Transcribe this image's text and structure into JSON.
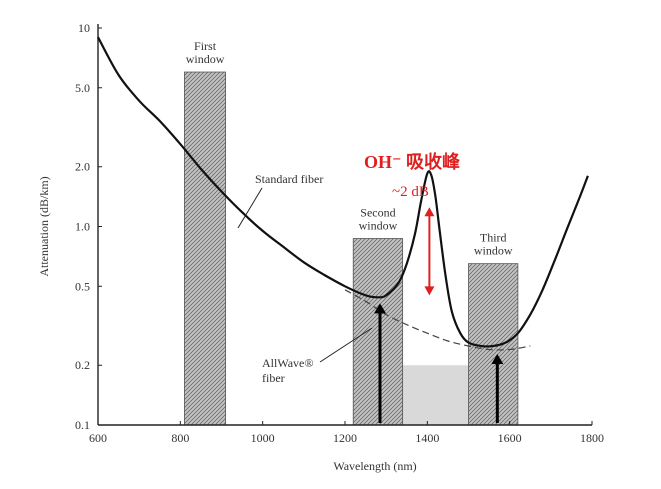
{
  "chart_data": {
    "type": "line",
    "title": "",
    "xlabel": "Wavelength (nm)",
    "ylabel": "Attenuation (dB/km)",
    "xlim": [
      600,
      1800
    ],
    "ylim": [
      0.1,
      10
    ],
    "y_scale": "log",
    "grid": false,
    "x_ticks": [
      600,
      800,
      1000,
      1200,
      1400,
      1600,
      1800
    ],
    "x_tick_labels": [
      "600",
      "800",
      "1000",
      "1200",
      "1400",
      "1600",
      "1800"
    ],
    "y_ticks": [
      0.1,
      0.2,
      0.5,
      1.0,
      2.0,
      5.0,
      10
    ],
    "y_tick_labels": [
      "0.1",
      "0.2",
      "0.5",
      "1.0",
      "2.0",
      "5.0",
      "10"
    ],
    "series": [
      {
        "name": "Standard fiber",
        "style": "solid",
        "x": [
          600,
          650,
          700,
          750,
          800,
          850,
          900,
          950,
          1000,
          1050,
          1100,
          1150,
          1200,
          1250,
          1280,
          1300,
          1330,
          1350,
          1370,
          1385,
          1400,
          1410,
          1420,
          1430,
          1445,
          1460,
          1480,
          1500,
          1530,
          1560,
          1590,
          1620,
          1650,
          1680,
          1710,
          1740,
          1770,
          1790
        ],
        "y": [
          9.0,
          5.8,
          4.3,
          3.4,
          2.6,
          1.95,
          1.5,
          1.18,
          0.95,
          0.79,
          0.66,
          0.57,
          0.5,
          0.45,
          0.44,
          0.45,
          0.52,
          0.65,
          0.92,
          1.35,
          1.85,
          1.8,
          1.4,
          0.95,
          0.55,
          0.37,
          0.29,
          0.26,
          0.25,
          0.25,
          0.26,
          0.29,
          0.36,
          0.48,
          0.68,
          0.98,
          1.4,
          1.8
        ]
      },
      {
        "name": "AllWave fiber",
        "style": "dashed",
        "x": [
          1200,
          1250,
          1300,
          1350,
          1400,
          1450,
          1500,
          1550,
          1600,
          1650
        ],
        "y": [
          0.48,
          0.42,
          0.36,
          0.32,
          0.29,
          0.265,
          0.25,
          0.24,
          0.24,
          0.25
        ]
      }
    ],
    "windows": [
      {
        "label_lines": [
          "First",
          "window"
        ],
        "x_start": 810,
        "x_end": 910,
        "y_top": 6.0
      },
      {
        "label_lines": [
          "Second",
          "window"
        ],
        "x_start": 1220,
        "x_end": 1340,
        "y_top": 0.87
      },
      {
        "label_lines": [
          "Third",
          "window"
        ],
        "x_start": 1500,
        "x_end": 1620,
        "y_top": 0.65
      }
    ],
    "gray_band": {
      "x_start": 1220,
      "x_end": 1620,
      "y_top": 0.2
    },
    "annotations": {
      "standard_fiber": "Standard fiber",
      "allwave_line1": "AllWave®",
      "allwave_line2": "fiber",
      "oh_peak": "OH⁻ 吸收峰",
      "oh_delta": "~2 dB"
    },
    "colors": {
      "curve": "#111111",
      "axis": "#222222",
      "window_fill": "#c8c8c8",
      "band_fill": "#d9d9d9",
      "red": "#e02020"
    }
  }
}
